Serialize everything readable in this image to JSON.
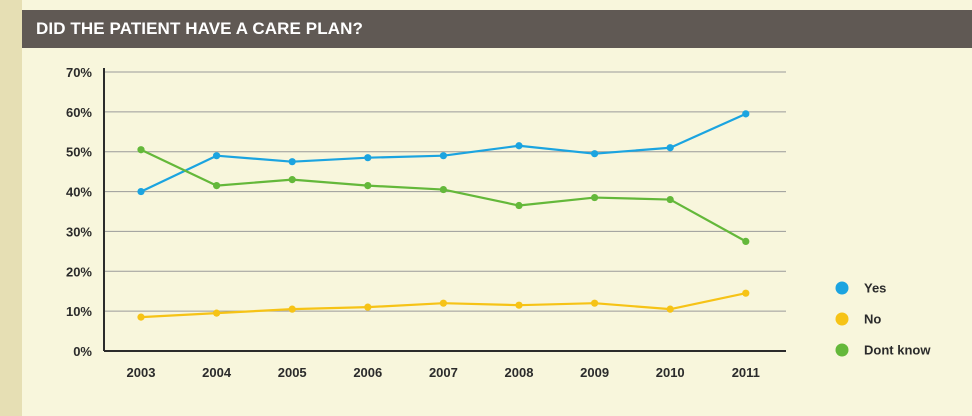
{
  "title": "DID THE PATIENT HAVE A CARE PLAN?",
  "chart_data": {
    "type": "line",
    "title": "DID THE PATIENT HAVE A CARE PLAN?",
    "xlabel": "",
    "ylabel": "",
    "categories": [
      "2003",
      "2004",
      "2005",
      "2006",
      "2007",
      "2008",
      "2009",
      "2010",
      "2011"
    ],
    "ylim": [
      0,
      70
    ],
    "yticks": [
      "0%",
      "10%",
      "20%",
      "30%",
      "40%",
      "50%",
      "60%",
      "70%"
    ],
    "grid": true,
    "legend_position": "right",
    "series": [
      {
        "name": "Yes",
        "color": "#1ba4e0",
        "values": [
          40,
          49,
          47.5,
          48.5,
          49,
          51.5,
          49.5,
          51,
          59.5
        ]
      },
      {
        "name": "No",
        "color": "#f6c316",
        "values": [
          8.5,
          9.5,
          10.5,
          11,
          12,
          11.5,
          12,
          10.5,
          14.5
        ]
      },
      {
        "name": "Dont know",
        "color": "#64b83a",
        "values": [
          50.5,
          41.5,
          43,
          41.5,
          40.5,
          36.5,
          38.5,
          38,
          27.5
        ]
      }
    ]
  }
}
